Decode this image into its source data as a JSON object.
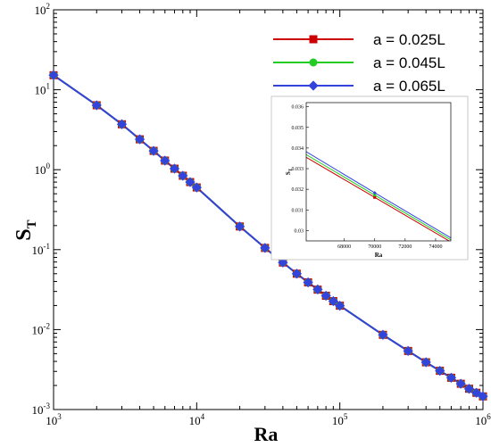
{
  "chart_data": {
    "type": "line",
    "xlabel": "Ra",
    "ylabel": "S",
    "ylabel_sub": "T",
    "xscale": "log",
    "yscale": "log",
    "xlim": [
      1000,
      1000000
    ],
    "ylim": [
      0.001,
      100
    ],
    "x_ticks": [
      {
        "base": "10",
        "exp": "3",
        "value": 1000
      },
      {
        "base": "10",
        "exp": "4",
        "value": 10000
      },
      {
        "base": "10",
        "exp": "5",
        "value": 100000
      },
      {
        "base": "10",
        "exp": "6",
        "value": 1000000
      }
    ],
    "y_ticks": [
      {
        "base": "10",
        "exp": "-3",
        "value": 0.001
      },
      {
        "base": "10",
        "exp": "-2",
        "value": 0.01
      },
      {
        "base": "10",
        "exp": "-1",
        "value": 0.1
      },
      {
        "base": "10",
        "exp": "0",
        "value": 1
      },
      {
        "base": "10",
        "exp": "1",
        "value": 10
      },
      {
        "base": "10",
        "exp": "2",
        "value": 100
      }
    ],
    "legend_position": "top-right",
    "grid": false,
    "series": [
      {
        "name": "a = 0.025L",
        "color": "#cc0000",
        "marker": "square",
        "x": [
          1000,
          2000,
          3000,
          4000,
          5000,
          6000,
          7000,
          8000,
          9000,
          10000,
          20000,
          30000,
          40000,
          50000,
          60000,
          70000,
          80000,
          90000,
          100000,
          200000,
          300000,
          400000,
          500000,
          600000,
          700000,
          800000,
          900000,
          1000000
        ],
        "y": [
          15.2,
          6.4,
          3.7,
          2.4,
          1.72,
          1.3,
          1.03,
          0.84,
          0.7,
          0.6,
          0.195,
          0.105,
          0.069,
          0.05,
          0.039,
          0.0316,
          0.0265,
          0.0227,
          0.0199,
          0.0086,
          0.0054,
          0.0039,
          0.00305,
          0.0025,
          0.0021,
          0.00182,
          0.00162,
          0.00146
        ]
      },
      {
        "name": "a = 0.045L",
        "color": "#22cc22",
        "marker": "circle",
        "x": [
          1000,
          2000,
          3000,
          4000,
          5000,
          6000,
          7000,
          8000,
          9000,
          10000,
          20000,
          30000,
          40000,
          50000,
          60000,
          70000,
          80000,
          90000,
          100000,
          200000,
          300000,
          400000,
          500000,
          600000,
          700000,
          800000,
          900000,
          1000000
        ],
        "y": [
          15.2,
          6.4,
          3.7,
          2.4,
          1.72,
          1.3,
          1.03,
          0.84,
          0.7,
          0.6,
          0.195,
          0.105,
          0.069,
          0.05,
          0.039,
          0.0317,
          0.0265,
          0.0227,
          0.0199,
          0.0086,
          0.0054,
          0.0039,
          0.00305,
          0.0025,
          0.0021,
          0.00182,
          0.00162,
          0.00146
        ]
      },
      {
        "name": "a = 0.065L",
        "color": "#3344dd",
        "marker": "diamond",
        "x": [
          1000,
          2000,
          3000,
          4000,
          5000,
          6000,
          7000,
          8000,
          9000,
          10000,
          20000,
          30000,
          40000,
          50000,
          60000,
          70000,
          80000,
          90000,
          100000,
          200000,
          300000,
          400000,
          500000,
          600000,
          700000,
          800000,
          900000,
          1000000
        ],
        "y": [
          15.2,
          6.4,
          3.7,
          2.4,
          1.72,
          1.3,
          1.03,
          0.84,
          0.7,
          0.6,
          0.195,
          0.105,
          0.069,
          0.05,
          0.039,
          0.0318,
          0.0265,
          0.0227,
          0.0199,
          0.0086,
          0.0054,
          0.0039,
          0.00305,
          0.0025,
          0.0021,
          0.00182,
          0.00162,
          0.00146
        ]
      }
    ],
    "inset": {
      "xlabel": "Ra",
      "ylabel": "S",
      "ylabel_sub": "T",
      "xlim": [
        65500,
        75000
      ],
      "ylim": [
        0.0295,
        0.0362
      ],
      "x_ticks": [
        "68000",
        "70000",
        "72000",
        "74000"
      ],
      "x_tick_values": [
        68000,
        70000,
        72000,
        74000
      ],
      "y_ticks": [
        "0.03",
        "0.031",
        "0.032",
        "0.033",
        "0.034",
        "0.035",
        "0.036"
      ],
      "y_tick_values": [
        0.03,
        0.031,
        0.032,
        0.033,
        0.034,
        0.035,
        0.036
      ],
      "series": [
        {
          "name": "a = 0.025L",
          "color": "#cc0000",
          "x": [
            65500,
            70000,
            75000
          ],
          "y": [
            0.03355,
            0.03161,
            0.02945
          ]
        },
        {
          "name": "a = 0.045L",
          "color": "#22cc22",
          "x": [
            65500,
            70000,
            75000
          ],
          "y": [
            0.03368,
            0.03172,
            0.02955
          ]
        },
        {
          "name": "a = 0.065L",
          "color": "#3344dd",
          "x": [
            65500,
            70000,
            75000
          ],
          "y": [
            0.03382,
            0.03183,
            0.02965
          ]
        }
      ]
    }
  }
}
